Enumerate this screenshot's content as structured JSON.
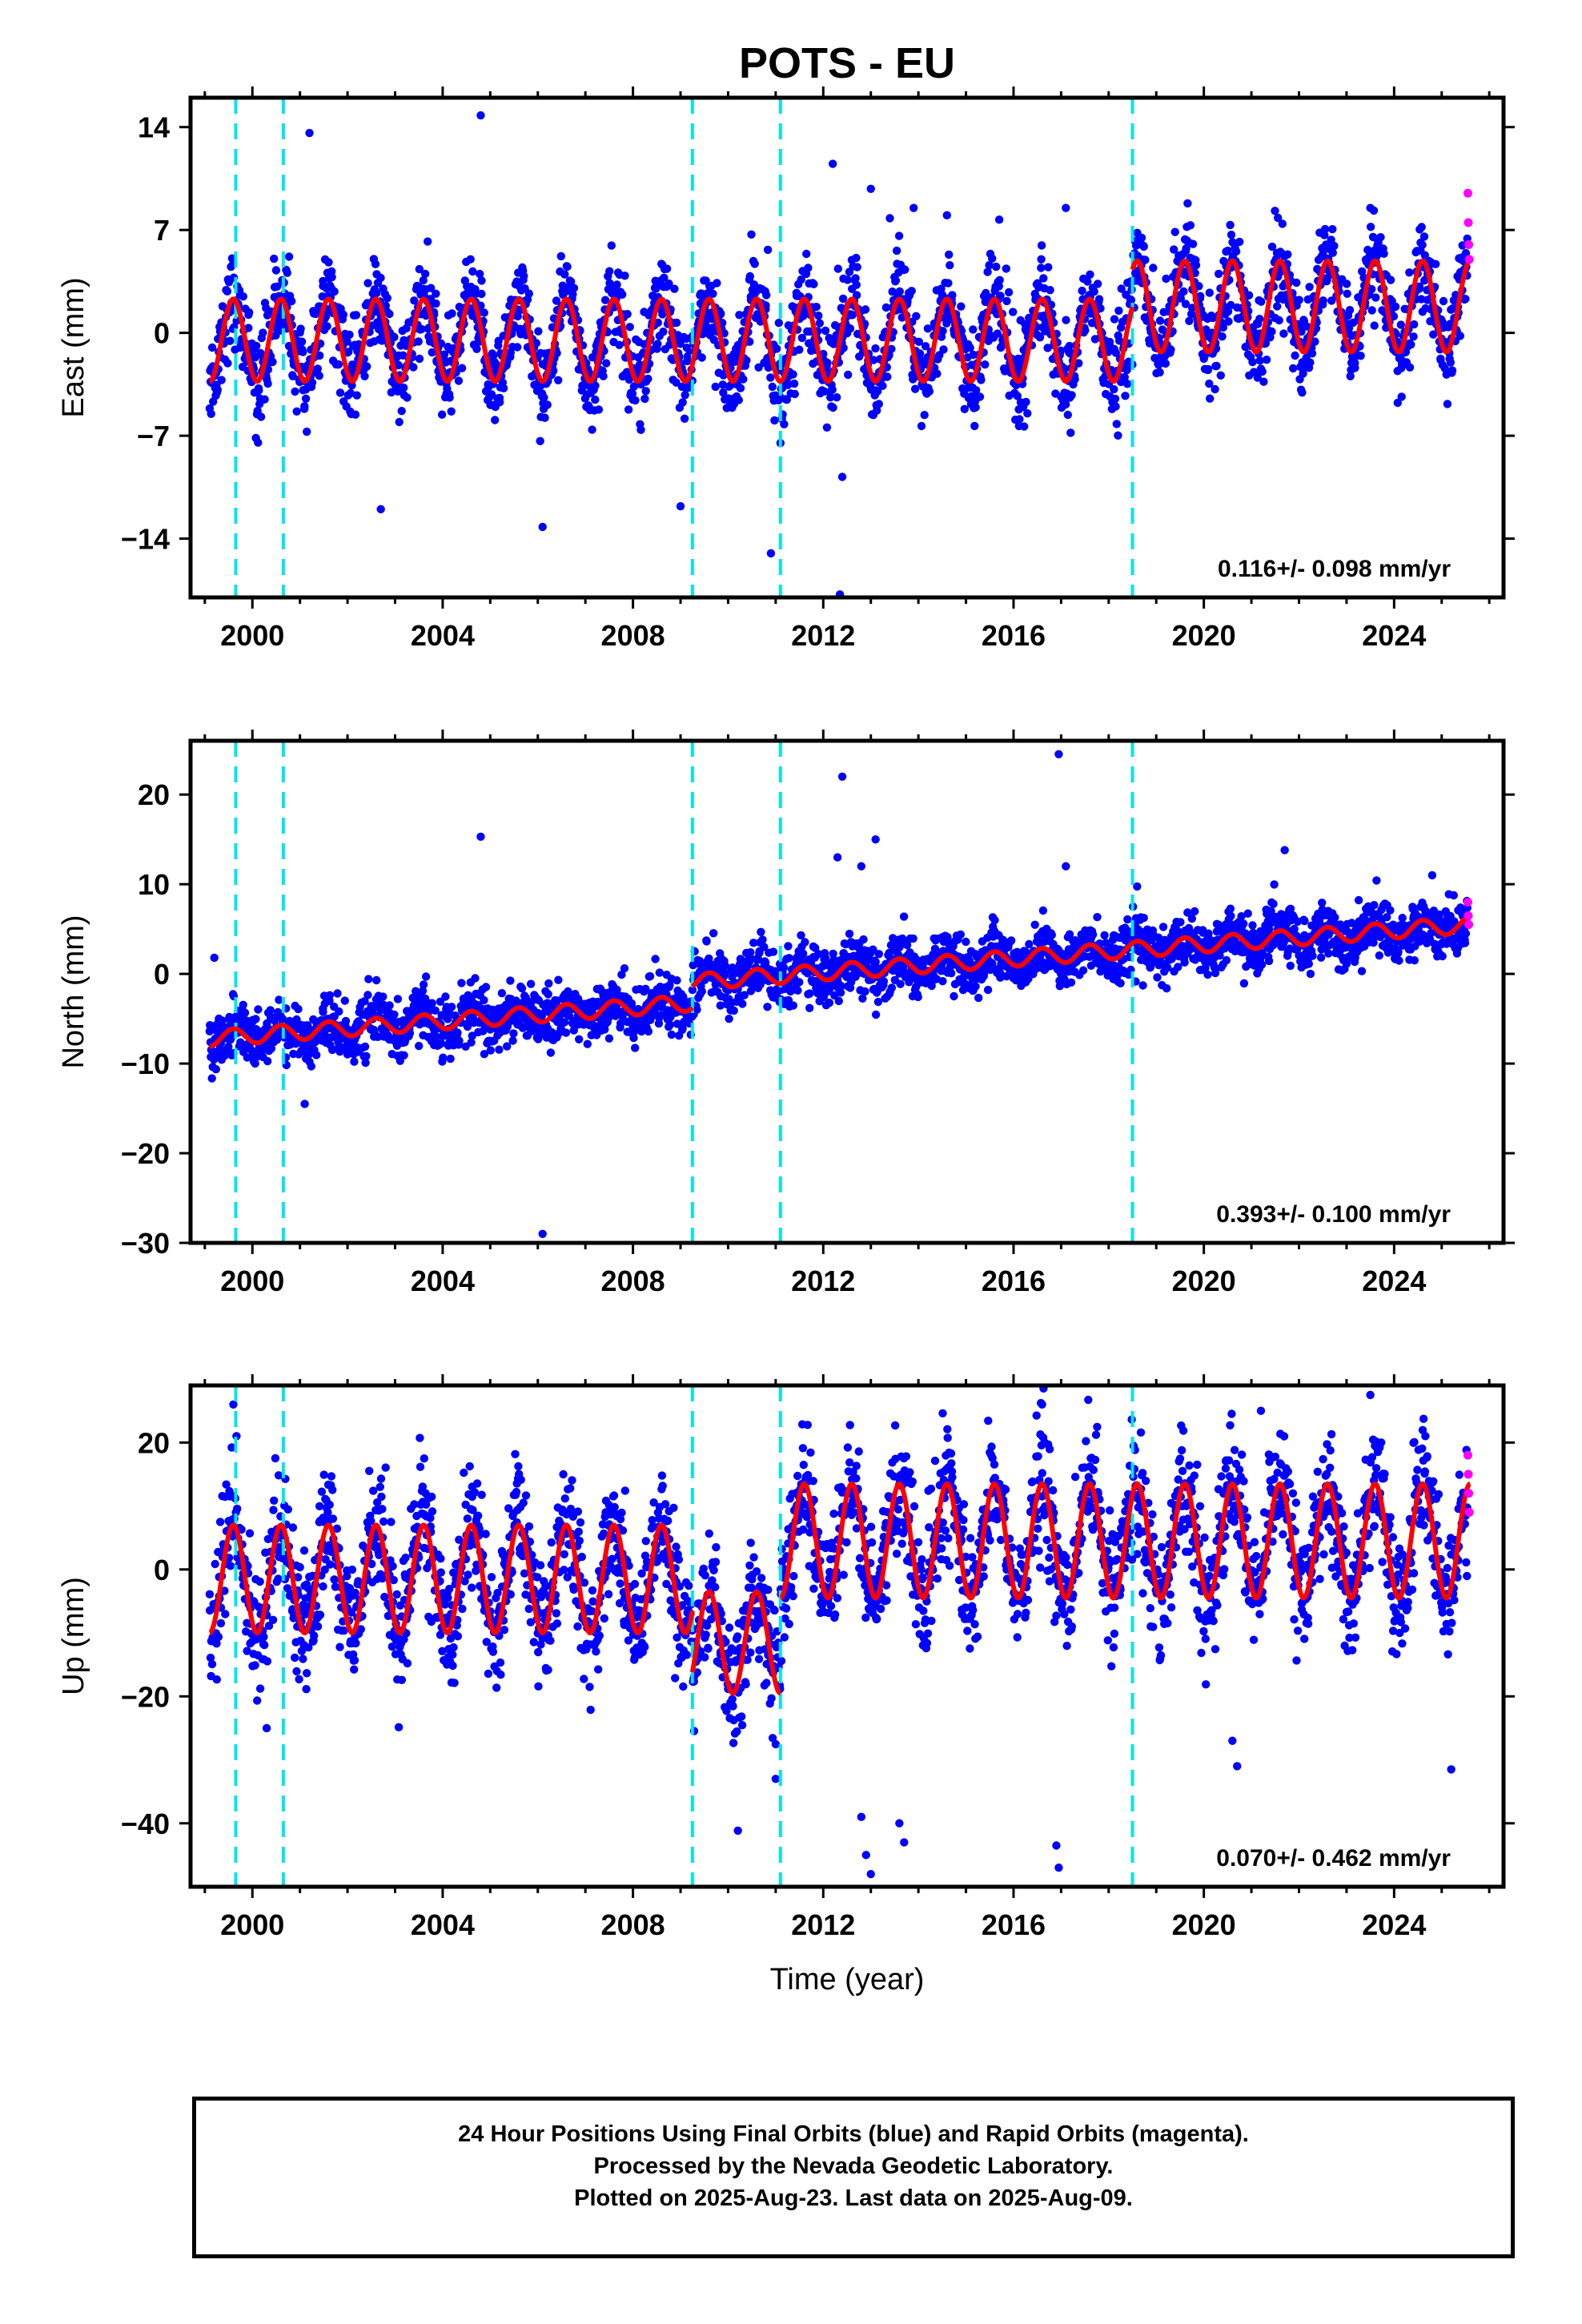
{
  "chart_data": {
    "type": "scatter",
    "title": "POTS - EU",
    "xlabel": "Time (year)",
    "x_ticks": [
      2000,
      2004,
      2008,
      2012,
      2016,
      2020,
      2024
    ],
    "xlim": [
      1998.7,
      2026.3
    ],
    "offset_lines_year": [
      1999.65,
      2000.65,
      2009.25,
      2011.1,
      2018.5
    ],
    "colors": {
      "final": "#0000ff",
      "rapid": "#ff00ff",
      "model": "#ff0000",
      "offsets": "#00e5ee"
    },
    "panels": [
      {
        "component": "east",
        "ylabel": "East (mm)",
        "ylim": [
          -18,
          16
        ],
        "y_ticks": [
          14,
          7,
          0,
          -7,
          -14
        ],
        "y_tick_labels": [
          "14",
          "7",
          "0",
          "−7",
          "−14"
        ],
        "rate_text": "0.116+/- 0.098 mm/yr",
        "model_segments": [
          {
            "start": 1999.1,
            "end": 2018.5,
            "mean": -0.5,
            "trend": 0.0,
            "amplitude": 2.8
          },
          {
            "start": 2018.5,
            "end": 2025.6,
            "mean": 1.8,
            "trend": 0.0,
            "amplitude": 3.1
          }
        ],
        "outliers": [
          [
            1999.55,
            4.5
          ],
          [
            2001.2,
            13.6
          ],
          [
            2002.7,
            -12.0
          ],
          [
            2004.8,
            14.8
          ],
          [
            2006.1,
            -13.2
          ],
          [
            2009.0,
            -11.8
          ],
          [
            2010.9,
            -15.0
          ],
          [
            2011.1,
            -7.5
          ],
          [
            2012.2,
            11.5
          ],
          [
            2012.4,
            -9.8
          ],
          [
            2012.35,
            -17.8
          ],
          [
            2013.0,
            9.8
          ],
          [
            2013.4,
            7.8
          ],
          [
            2013.9,
            8.5
          ],
          [
            2014.6,
            8.0
          ],
          [
            2015.7,
            7.7
          ],
          [
            2017.1,
            8.5
          ],
          [
            2017.2,
            -6.8
          ],
          [
            2018.6,
            6.8
          ],
          [
            2023.5,
            8.5
          ]
        ],
        "rapid_points": [
          [
            2025.55,
            9.5
          ],
          [
            2025.56,
            7.5
          ],
          [
            2025.57,
            6.0
          ],
          [
            2025.58,
            5.0
          ]
        ]
      },
      {
        "component": "north",
        "ylabel": "North (mm)",
        "ylim": [
          -30,
          26
        ],
        "y_ticks": [
          20,
          10,
          0,
          -10,
          -20,
          -30
        ],
        "y_tick_labels": [
          "20",
          "10",
          "0",
          "−10",
          "−20",
          "−30"
        ],
        "rate_text": "0.393+/- 0.100 mm/yr",
        "model_segments": [
          {
            "start": 1999.1,
            "end": 2009.25,
            "mean": -7.2,
            "trend": 0.39,
            "amplitude": 0.9
          },
          {
            "start": 2009.25,
            "end": 2025.6,
            "mean": -0.9,
            "trend": 0.39,
            "amplitude": 0.9
          }
        ],
        "outliers": [
          [
            1999.2,
            1.8
          ],
          [
            2001.1,
            -14.5
          ],
          [
            2004.8,
            15.3
          ],
          [
            2006.1,
            -29.0
          ],
          [
            2012.4,
            22.0
          ],
          [
            2012.3,
            13.0
          ],
          [
            2013.1,
            15.0
          ],
          [
            2012.8,
            12.0
          ],
          [
            2016.95,
            24.5
          ],
          [
            2017.1,
            12.0
          ],
          [
            2021.7,
            13.8
          ],
          [
            2024.8,
            11.0
          ]
        ],
        "rapid_points": [
          [
            2025.55,
            8.0
          ],
          [
            2025.56,
            6.5
          ],
          [
            2025.57,
            5.5
          ]
        ]
      },
      {
        "component": "up",
        "ylabel": "Up (mm)",
        "ylim": [
          -50,
          29
        ],
        "y_ticks": [
          20,
          0,
          -20,
          -40
        ],
        "y_tick_labels": [
          "20",
          "0",
          "−20",
          "−40"
        ],
        "rate_text": "0.070+/- 0.462 mm/yr",
        "model_segments": [
          {
            "start": 1999.1,
            "end": 2009.25,
            "mean": -1.5,
            "trend": 0.0,
            "amplitude": 8.5
          },
          {
            "start": 2009.25,
            "end": 2011.1,
            "mean": -11.5,
            "trend": 0.0,
            "amplitude": 8.0
          },
          {
            "start": 2011.1,
            "end": 2025.6,
            "mean": 4.5,
            "trend": 0.0,
            "amplitude": 9.0
          }
        ],
        "outliers": [
          [
            1999.6,
            26.0
          ],
          [
            2000.3,
            -25.0
          ],
          [
            2011.0,
            -33.0
          ],
          [
            2012.8,
            -39.0
          ],
          [
            2012.9,
            -45.0
          ],
          [
            2013.0,
            -48.0
          ],
          [
            2013.6,
            -40.0
          ],
          [
            2013.7,
            -43.0
          ],
          [
            2016.9,
            -43.5
          ],
          [
            2016.95,
            -47.0
          ],
          [
            2020.6,
            -27.0
          ],
          [
            2020.7,
            -31.0
          ],
          [
            2023.5,
            27.5
          ],
          [
            2025.2,
            -31.5
          ],
          [
            2021.2,
            25.0
          ],
          [
            2016.6,
            26.0
          ]
        ],
        "rapid_points": [
          [
            2025.55,
            18.0
          ],
          [
            2025.56,
            15.0
          ],
          [
            2025.57,
            12.0
          ],
          [
            2025.58,
            9.0
          ]
        ]
      }
    ]
  },
  "footer": {
    "line1": "24 Hour Positions Using Final Orbits (blue) and Rapid Orbits (magenta).",
    "line2": "Processed by the Nevada Geodetic Laboratory.",
    "line3": "Plotted on 2025-Aug-23. Last data on 2025-Aug-09."
  }
}
